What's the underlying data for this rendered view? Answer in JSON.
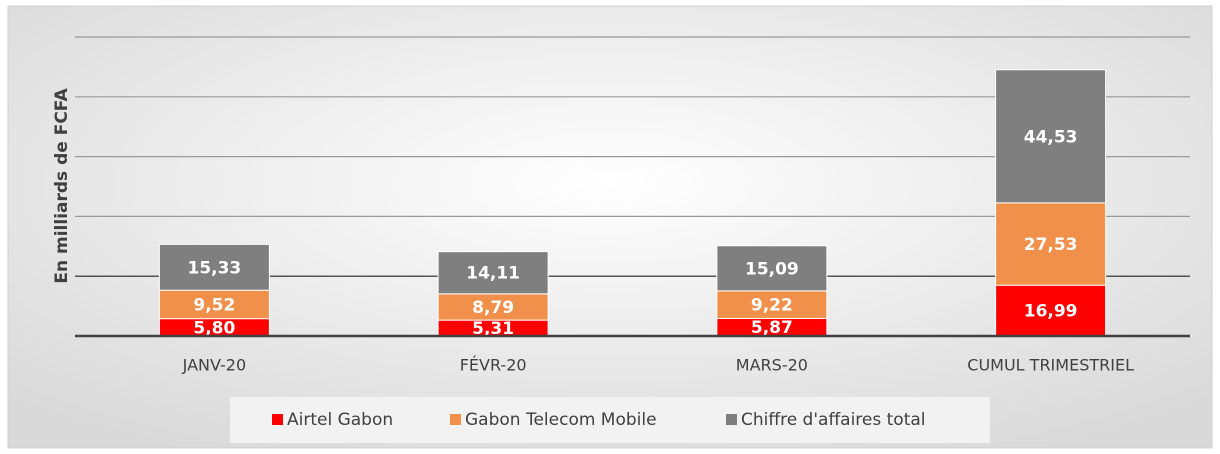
{
  "chart_data": {
    "type": "stacked_bar",
    "y_label": "En milliards de FCFA",
    "categories": [
      "JANV-20",
      "FÉVR-20",
      "MARS-20",
      "CUMUL TRIMESTRIEL"
    ],
    "series": [
      {
        "name": "Airtel Gabon",
        "color": "#ff0000",
        "values": [
          5.8,
          5.31,
          5.87,
          16.99
        ],
        "value_labels": [
          "5,80",
          "5,31",
          "5,87",
          "16,99"
        ]
      },
      {
        "name": "Gabon Telecom Mobile",
        "color": "#f0904a",
        "values": [
          9.52,
          8.79,
          9.22,
          27.53
        ],
        "value_labels": [
          "9,52",
          "8,79",
          "9,22",
          "27,53"
        ]
      },
      {
        "name": "Chiffre d'affaires total",
        "color": "#7f7f7f",
        "values": [
          15.33,
          14.11,
          15.09,
          44.53
        ],
        "value_labels": [
          "15,33",
          "14,11",
          "15,09",
          "44,53"
        ]
      }
    ],
    "ylim": [
      0,
      100
    ],
    "yticks": [
      0,
      20,
      40,
      60,
      80,
      100
    ],
    "grid": true
  }
}
